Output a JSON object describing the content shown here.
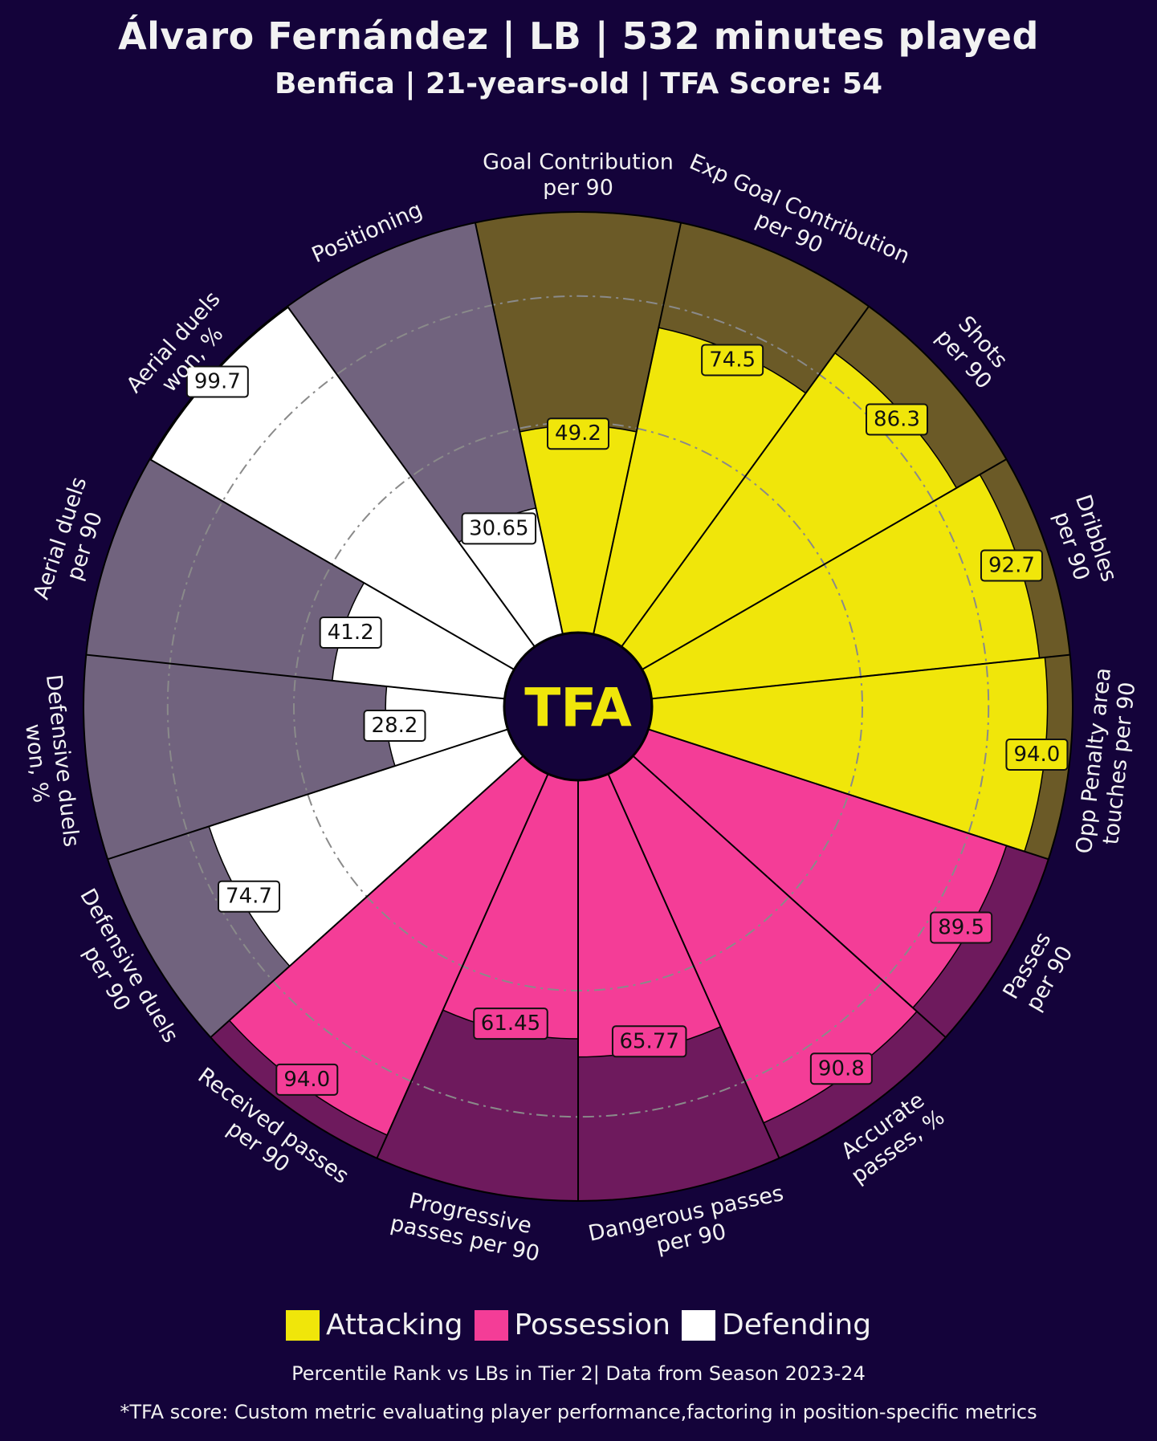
{
  "header": {
    "title": "Álvaro Fernández | LB | 532 minutes played",
    "subtitle": "Benfica | 21-years-old | TFA Score: 54"
  },
  "logo_text": "TFA",
  "colors": {
    "background": "#14033a",
    "attacking": "#f0e60a",
    "attacking_bg": "#6b5a27",
    "possession": "#f43d97",
    "possession_bg": "#6e1a5d",
    "defending": "#ffffff",
    "defending_bg": "#71637e",
    "grid": "#8a8a8a",
    "text": "#f2f2f2"
  },
  "legend": {
    "attacking": "Attacking",
    "possession": "Possession",
    "defending": "Defending"
  },
  "footer": {
    "note": "Percentile Rank vs LBs in Tier 2| Data from Season 2023-24",
    "disclaimer": "*TFA score: Custom metric evaluating player performance,factoring in position-specific metrics"
  },
  "chart_data": {
    "type": "radial-bar",
    "title": "Álvaro Fernández | LB | 532 minutes played",
    "range": [
      0,
      100
    ],
    "categories": [
      {
        "label": [
          "Goal Contribution",
          "per 90"
        ],
        "value_text": "49.2",
        "value": 49.2,
        "group": "attacking"
      },
      {
        "label": [
          "Exp Goal Contribution",
          "per 90"
        ],
        "value_text": "74.5",
        "value": 74.5,
        "group": "attacking"
      },
      {
        "label": [
          "Shots",
          "per 90"
        ],
        "value_text": "86.3",
        "value": 86.3,
        "group": "attacking"
      },
      {
        "label": [
          "Dribbles",
          "per 90"
        ],
        "value_text": "92.7",
        "value": 92.7,
        "group": "attacking"
      },
      {
        "label": [
          "Opp Penalty area",
          "touches per 90"
        ],
        "value_text": "94.0",
        "value": 94.0,
        "group": "attacking"
      },
      {
        "label": [
          "Passes",
          "per 90"
        ],
        "value_text": "89.5",
        "value": 89.5,
        "group": "possession"
      },
      {
        "label": [
          "Accurate",
          "passes, %"
        ],
        "value_text": "90.8",
        "value": 90.8,
        "group": "possession"
      },
      {
        "label": [
          "Dangerous passes",
          "per 90"
        ],
        "value_text": "65.77",
        "value": 65.77,
        "group": "possession"
      },
      {
        "label": [
          "Progressive",
          "passes per 90"
        ],
        "value_text": "61.45",
        "value": 61.45,
        "group": "possession"
      },
      {
        "label": [
          "Received passes",
          "per 90"
        ],
        "value_text": "94.0",
        "value": 94.0,
        "group": "possession"
      },
      {
        "label": [
          "Defensive duels",
          "per 90"
        ],
        "value_text": "74.7",
        "value": 74.7,
        "group": "defending"
      },
      {
        "label": [
          "Defensive duels",
          "won, %"
        ],
        "value_text": "28.2",
        "value": 28.2,
        "group": "defending"
      },
      {
        "label": [
          "Aerial duels",
          "per 90"
        ],
        "value_text": "41.2",
        "value": 41.2,
        "group": "defending"
      },
      {
        "label": [
          "Aerial duels",
          "won, %"
        ],
        "value_text": "99.7",
        "value": 99.7,
        "group": "defending"
      },
      {
        "label": [
          "Positioning"
        ],
        "value_text": "30.65",
        "value": 30.65,
        "group": "defending"
      }
    ],
    "gridlines": [
      50,
      80
    ]
  }
}
